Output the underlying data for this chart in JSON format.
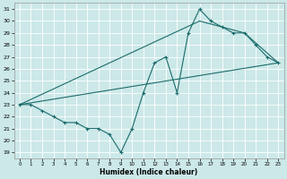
{
  "xlabel": "Humidex (Indice chaleur)",
  "xlim": [
    -0.5,
    23.5
  ],
  "ylim": [
    18.5,
    31.5
  ],
  "yticks": [
    19,
    20,
    21,
    22,
    23,
    24,
    25,
    26,
    27,
    28,
    29,
    30,
    31
  ],
  "xticks": [
    0,
    1,
    2,
    3,
    4,
    5,
    6,
    7,
    8,
    9,
    10,
    11,
    12,
    13,
    14,
    15,
    16,
    17,
    18,
    19,
    20,
    21,
    22,
    23
  ],
  "bg_color": "#cce8e8",
  "line_color": "#1a6b6b",
  "grid_color": "#aacccc",
  "line1_x": [
    0,
    1,
    2,
    3,
    4,
    5,
    6,
    7,
    8,
    9,
    10,
    11,
    12,
    13,
    14,
    15,
    16,
    17,
    18,
    19,
    20,
    21,
    22,
    23
  ],
  "line1_y": [
    23,
    23,
    22.5,
    22,
    21.5,
    21.5,
    21,
    21,
    20.5,
    19,
    21,
    24,
    26.5,
    27,
    24,
    29,
    31,
    30,
    29.5,
    29,
    29,
    28,
    27,
    26.5
  ],
  "line2_x": [
    0,
    23
  ],
  "line2_y": [
    23,
    26.5
  ],
  "line3_x": [
    0,
    16,
    20,
    23
  ],
  "line3_y": [
    23,
    30,
    29,
    26.5
  ]
}
